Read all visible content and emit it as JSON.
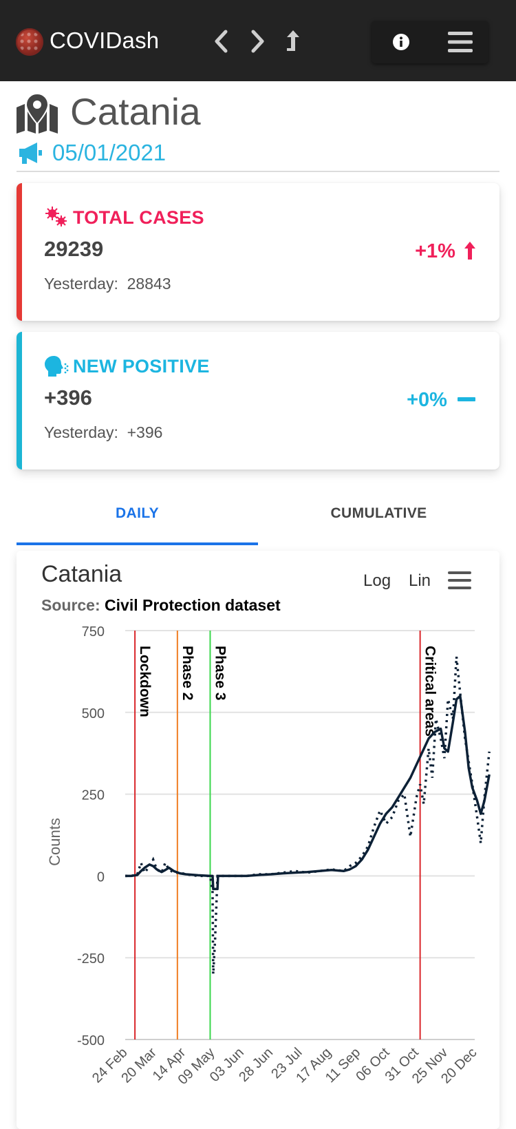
{
  "app": {
    "brand": "COVIDash"
  },
  "header": {
    "location": "Catania",
    "date": "05/01/2021"
  },
  "cards": [
    {
      "title": "TOTAL CASES",
      "value": "29239",
      "yesterday_label": "Yesterday:",
      "yesterday_value": "28843",
      "change": "+1%",
      "color": "#f0205a",
      "accent": "#e53935"
    },
    {
      "title": "NEW POSITIVE",
      "value": "+396",
      "yesterday_label": "Yesterday:",
      "yesterday_value": "+396",
      "change": "+0%",
      "color": "#1cb5e0",
      "accent": "#1cb5d4"
    }
  ],
  "tabs": {
    "daily": "DAILY",
    "cumulative": "CUMULATIVE"
  },
  "chart": {
    "title": "Catania",
    "source_label": "Source:",
    "source_value": "Civil Protection dataset",
    "log_label": "Log",
    "lin_label": "Lin"
  },
  "chart_data": {
    "type": "line",
    "title": "Catania",
    "ylabel": "Counts",
    "xlabel": "",
    "ylim": [
      -500,
      750
    ],
    "yticks": [
      750,
      500,
      250,
      0,
      -250,
      -500
    ],
    "xticks": [
      "24 Feb",
      "20 Mar",
      "14 Apr",
      "09 May",
      "03 Jun",
      "28 Jun",
      "23 Jul",
      "17 Aug",
      "11 Sep",
      "06 Oct",
      "31 Oct",
      "25 Nov",
      "20 Dec"
    ],
    "grid": true,
    "markers": [
      {
        "label": "Lockdown",
        "date_index": 0.8,
        "color": "#d9262a"
      },
      {
        "label": "Phase 2",
        "date_index": 4.3,
        "color": "#f07d22"
      },
      {
        "label": "Phase 3",
        "date_index": 7.0,
        "color": "#3ad64c"
      },
      {
        "label": "Critical areas",
        "date_index": 24.3,
        "color": "#d9262a"
      }
    ],
    "series": [
      {
        "style": "dotted",
        "x": [
          0,
          0.5,
          1,
          1.3,
          1.6,
          2.0,
          2.3,
          2.6,
          3.0,
          3.3,
          3.6,
          4.0,
          4.5,
          5,
          6,
          7.0,
          7.2,
          7.25,
          7.4,
          7.6,
          8,
          9,
          10,
          11,
          12,
          13,
          14,
          15,
          16,
          17,
          18,
          18.5,
          19,
          19.5,
          20,
          20.5,
          21,
          21.5,
          22,
          22.5,
          23,
          23.5,
          24,
          24.3,
          24.6,
          25,
          25.3,
          25.6,
          26,
          26.3,
          26.6,
          27,
          27.3,
          27.6,
          28,
          28.3,
          28.6,
          29,
          29.3,
          29.6,
          30
        ],
        "values": [
          0,
          0,
          5,
          40,
          10,
          30,
          50,
          20,
          10,
          40,
          20,
          10,
          10,
          5,
          0,
          0,
          -50,
          -300,
          -200,
          0,
          0,
          0,
          0,
          5,
          5,
          10,
          15,
          10,
          15,
          20,
          15,
          30,
          40,
          60,
          90,
          150,
          200,
          160,
          180,
          230,
          250,
          120,
          240,
          280,
          220,
          390,
          300,
          480,
          420,
          360,
          540,
          480,
          670,
          560,
          420,
          350,
          280,
          180,
          100,
          240,
          380
        ]
      },
      {
        "style": "solid",
        "x": [
          0,
          0.5,
          1,
          1.3,
          1.6,
          2.0,
          2.3,
          2.6,
          3.0,
          3.3,
          3.6,
          4.0,
          4.5,
          5,
          6,
          7.0,
          7.2,
          7.25,
          7.6,
          7.65,
          8,
          9,
          10,
          11,
          12,
          13,
          14,
          15,
          16,
          17,
          18,
          18.5,
          19,
          19.5,
          20,
          20.5,
          21,
          21.5,
          22,
          22.5,
          23,
          23.5,
          24,
          24.5,
          25,
          25.5,
          26,
          26.3,
          26.6,
          27,
          27.3,
          27.6,
          28,
          28.3,
          28.6,
          29,
          29.3,
          29.6,
          30
        ],
        "values": [
          0,
          0,
          3,
          15,
          25,
          35,
          30,
          20,
          12,
          18,
          25,
          15,
          8,
          5,
          2,
          0,
          0,
          -40,
          -40,
          0,
          0,
          0,
          0,
          3,
          5,
          8,
          10,
          12,
          15,
          18,
          15,
          20,
          30,
          50,
          80,
          120,
          160,
          190,
          210,
          240,
          270,
          300,
          340,
          380,
          420,
          440,
          450,
          390,
          380,
          470,
          540,
          550,
          440,
          330,
          270,
          230,
          190,
          230,
          310
        ]
      }
    ]
  }
}
